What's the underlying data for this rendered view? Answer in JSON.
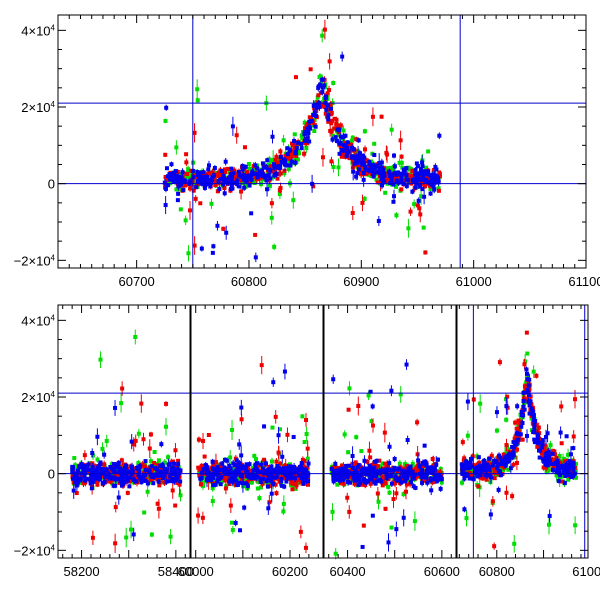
{
  "chart_data": [
    {
      "type": "scatter",
      "panel": "top",
      "title": "",
      "xlabel": "",
      "ylabel": "",
      "xlim": [
        60630,
        61100
      ],
      "ylim": [
        -22000,
        44000
      ],
      "xticks": [
        60700,
        60800,
        60900,
        61000,
        61100
      ],
      "xtick_labels": [
        "60700",
        "60800",
        "60900",
        "61000",
        "61100"
      ],
      "yticks": [
        -20000,
        0,
        20000,
        40000
      ],
      "ytick_labels": [
        {
          "sign": "−2×10",
          "exp": "4"
        },
        {
          "sign": "0",
          "exp": ""
        },
        {
          "sign": "2×10",
          "exp": "4"
        },
        {
          "sign": "4×10",
          "exp": "4"
        }
      ],
      "hlines": [
        0,
        21000
      ],
      "vlines": [
        60750,
        60988
      ],
      "series": [
        {
          "name": "green",
          "color": "#00dd00"
        },
        {
          "name": "red",
          "color": "#ee0000"
        },
        {
          "name": "blue",
          "color": "#0000ee"
        }
      ],
      "segments": [
        [
          60725,
          60970
        ]
      ],
      "peak": {
        "x": 60865,
        "amplitude": 26000,
        "width": 20
      }
    },
    {
      "type": "scatter",
      "panel": "bottom",
      "title": "",
      "xlabel": "",
      "ylabel": "",
      "broken_axis": true,
      "ylim": [
        -22000,
        44000
      ],
      "yticks": [
        -20000,
        0,
        20000,
        40000
      ],
      "ytick_labels": [
        {
          "sign": "−2×10",
          "exp": "4"
        },
        {
          "sign": "0",
          "exp": ""
        },
        {
          "sign": "2×10",
          "exp": "4"
        },
        {
          "sign": "4×10",
          "exp": "4"
        }
      ],
      "hlines": [
        0,
        21000
      ],
      "sub_axes": [
        {
          "xlim": [
            58150,
            58430
          ],
          "xticks": [
            58200,
            58400
          ],
          "xtick_labels": [
            "58200",
            "58400"
          ],
          "data": [
            58180,
            58410
          ]
        },
        {
          "xlim": [
            59990,
            60270
          ],
          "xticks": [
            60000,
            60200
          ],
          "xtick_labels": [
            "60000",
            "60200"
          ],
          "data": [
            60005,
            60240
          ]
        },
        {
          "xlim": [
            60350,
            60630
          ],
          "xticks": [
            60400,
            60600
          ],
          "xtick_labels": [
            "60400",
            "60600"
          ],
          "data": [
            60365,
            60600
          ]
        },
        {
          "xlim": [
            60715,
            60995
          ],
          "xticks": [
            60800,
            61000
          ],
          "xtick_labels": [
            "60800",
            "61000"
          ],
          "data": [
            60725,
            60970
          ],
          "vlines": [
            60750,
            60988
          ]
        }
      ],
      "series": [
        {
          "name": "green",
          "color": "#00dd00"
        },
        {
          "name": "red",
          "color": "#ee0000"
        },
        {
          "name": "blue",
          "color": "#0000ee"
        }
      ],
      "peak": {
        "x": 60865,
        "amplitude": 26000,
        "width": 20
      }
    }
  ]
}
